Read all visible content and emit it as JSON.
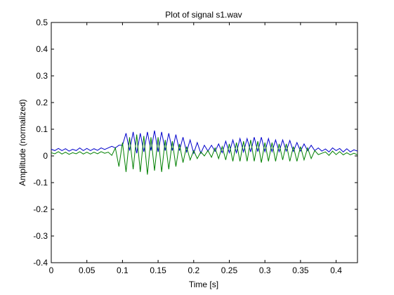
{
  "chart_data": {
    "type": "line",
    "title": "Plot of signal s1.wav",
    "xlabel": "Time [s]",
    "ylabel": "Amplitude (normalized)",
    "xlim": [
      0,
      0.43
    ],
    "ylim": [
      -0.4,
      0.5
    ],
    "grid": false,
    "x_ticks": [
      0,
      0.05,
      0.1,
      0.15,
      0.2,
      0.25,
      0.3,
      0.35,
      0.4
    ],
    "x_tick_labels": [
      "0",
      "0.05",
      "0.1",
      "0.15",
      "0.2",
      "0.25",
      "0.3",
      "0.35",
      "0.4"
    ],
    "y_ticks": [
      -0.4,
      -0.3,
      -0.2,
      -0.1,
      0,
      0.1,
      0.2,
      0.3,
      0.4,
      0.5
    ],
    "y_tick_labels": [
      "-0.4",
      "-0.3",
      "-0.2",
      "-0.1",
      "0",
      "0.1",
      "0.2",
      "0.3",
      "0.4",
      "0.5"
    ],
    "series": [
      {
        "color": "#0000cc",
        "x": [
          0,
          0.005,
          0.01,
          0.015,
          0.02,
          0.025,
          0.03,
          0.035,
          0.04,
          0.045,
          0.05,
          0.055,
          0.06,
          0.065,
          0.07,
          0.075,
          0.08,
          0.085,
          0.09,
          0.095,
          0.1,
          0.105,
          0.11,
          0.115,
          0.12,
          0.125,
          0.13,
          0.135,
          0.14,
          0.145,
          0.15,
          0.155,
          0.16,
          0.165,
          0.17,
          0.175,
          0.18,
          0.185,
          0.19,
          0.195,
          0.2,
          0.205,
          0.21,
          0.215,
          0.22,
          0.225,
          0.23,
          0.235,
          0.24,
          0.245,
          0.25,
          0.255,
          0.26,
          0.265,
          0.27,
          0.275,
          0.28,
          0.285,
          0.29,
          0.295,
          0.3,
          0.305,
          0.31,
          0.315,
          0.32,
          0.325,
          0.33,
          0.335,
          0.34,
          0.345,
          0.35,
          0.355,
          0.36,
          0.365,
          0.37,
          0.375,
          0.38,
          0.385,
          0.39,
          0.395,
          0.4,
          0.405,
          0.41,
          0.415,
          0.42,
          0.425,
          0.43
        ],
        "y": [
          0.025,
          0.02,
          0.028,
          0.02,
          0.027,
          0.018,
          0.025,
          0.02,
          0.03,
          0.02,
          0.028,
          0.02,
          0.027,
          0.021,
          0.03,
          0.024,
          0.03,
          0.036,
          0.03,
          0.04,
          0.04,
          0.085,
          0.02,
          0.09,
          0.01,
          0.085,
          0.015,
          0.09,
          0.02,
          0.095,
          0.015,
          0.09,
          0.02,
          0.085,
          0.02,
          0.08,
          0.02,
          0.07,
          0.015,
          0.06,
          0.01,
          0.05,
          0.01,
          0.04,
          0.018,
          0.04,
          0.017,
          0.045,
          0.012,
          0.055,
          0.012,
          0.06,
          0.012,
          0.065,
          0.015,
          0.065,
          0.015,
          0.07,
          0.016,
          0.07,
          0.016,
          0.065,
          0.016,
          0.06,
          0.016,
          0.06,
          0.018,
          0.058,
          0.017,
          0.05,
          0.018,
          0.045,
          0.019,
          0.04,
          0.02,
          0.03,
          0.018,
          0.026,
          0.015,
          0.03,
          0.02,
          0.028,
          0.015,
          0.027,
          0.015,
          0.023,
          0.018
        ]
      },
      {
        "color": "#008000",
        "x": [
          0,
          0.005,
          0.01,
          0.015,
          0.02,
          0.025,
          0.03,
          0.035,
          0.04,
          0.045,
          0.05,
          0.055,
          0.06,
          0.065,
          0.07,
          0.075,
          0.08,
          0.085,
          0.09,
          0.095,
          0.1,
          0.105,
          0.11,
          0.115,
          0.12,
          0.125,
          0.13,
          0.135,
          0.14,
          0.145,
          0.15,
          0.155,
          0.16,
          0.165,
          0.17,
          0.175,
          0.18,
          0.185,
          0.19,
          0.195,
          0.2,
          0.205,
          0.21,
          0.215,
          0.22,
          0.225,
          0.23,
          0.235,
          0.24,
          0.245,
          0.25,
          0.255,
          0.26,
          0.265,
          0.27,
          0.275,
          0.28,
          0.285,
          0.29,
          0.295,
          0.3,
          0.305,
          0.31,
          0.315,
          0.32,
          0.325,
          0.33,
          0.335,
          0.34,
          0.345,
          0.35,
          0.355,
          0.36,
          0.365,
          0.37,
          0.375,
          0.38,
          0.385,
          0.39,
          0.395,
          0.4,
          0.405,
          0.41,
          0.415,
          0.42,
          0.425,
          0.43
        ],
        "y": [
          0.012,
          0.008,
          0.016,
          0.007,
          0.014,
          0.006,
          0.012,
          0.008,
          0.016,
          0.007,
          0.014,
          0.007,
          0.014,
          0.008,
          0.016,
          0.01,
          0.014,
          0.002,
          0.03,
          -0.04,
          0.05,
          -0.06,
          0.07,
          -0.05,
          0.08,
          -0.06,
          0.075,
          -0.07,
          0.07,
          -0.055,
          0.07,
          -0.06,
          0.06,
          -0.05,
          0.055,
          -0.04,
          0.045,
          -0.025,
          0.035,
          -0.015,
          0.02,
          -0.01,
          0.015,
          0.0,
          0.02,
          -0.005,
          0.03,
          -0.01,
          0.035,
          -0.015,
          0.045,
          -0.02,
          0.05,
          -0.02,
          0.055,
          -0.02,
          0.06,
          -0.02,
          0.055,
          -0.025,
          0.05,
          -0.02,
          0.05,
          -0.02,
          0.045,
          -0.015,
          0.045,
          -0.02,
          0.035,
          -0.02,
          0.035,
          -0.015,
          0.03,
          -0.01,
          0.02,
          0.005,
          0.01,
          0.015,
          0.002,
          0.018,
          0.005,
          0.016,
          0.004,
          0.012,
          0.004,
          0.01,
          0.004
        ]
      }
    ]
  }
}
